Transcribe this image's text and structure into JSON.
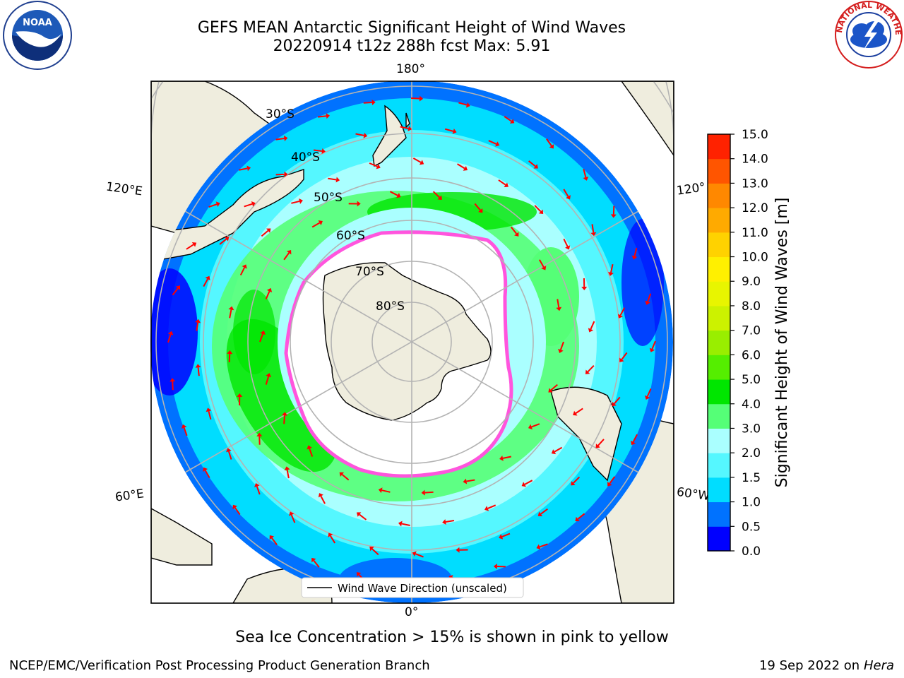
{
  "header": {
    "title_line1": "GEFS MEAN Antarctic Significant Height of Wind Waves",
    "title_line2": "20220914 t12z 288h fcst   Max: 5.91"
  },
  "logos": {
    "noaa": "NOAA",
    "nws": "NATIONAL WEATHER SERVICE"
  },
  "map": {
    "projection": "south-polar-stereographic",
    "longitude_labels": {
      "top": "180°",
      "bottom": "0°",
      "upper_left": "120°E",
      "upper_right": "120°",
      "lower_left": "60°E",
      "lower_right": "60°W"
    },
    "latitude_labels": [
      "30°S",
      "40°S",
      "50°S",
      "60°S",
      "70°S",
      "80°S"
    ],
    "legend": "Wind Wave Direction (unscaled)",
    "colors": {
      "land": "#efedde",
      "ice_free_blank": "#ffffff",
      "graticule": "#b3b3b3",
      "arrows": "#ff0000",
      "sea_ice": "#ff55dd"
    }
  },
  "colorbar": {
    "label": "Significant Height of Wind Waves [m]",
    "ticks": [
      "0.0",
      "0.5",
      "1.0",
      "1.5",
      "2.0",
      "3.0",
      "4.0",
      "5.0",
      "6.0",
      "7.0",
      "8.0",
      "9.0",
      "10.0",
      "11.0",
      "12.0",
      "13.0",
      "14.0",
      "15.0"
    ],
    "colors": [
      "#0000ff",
      "#0072ff",
      "#00ddff",
      "#55f7ff",
      "#aaffff",
      "#55ff77",
      "#00e600",
      "#55ee00",
      "#99ee00",
      "#ccf200",
      "#e8f500",
      "#fff000",
      "#ffd200",
      "#ffaa00",
      "#ff8800",
      "#ff5500",
      "#ff2200"
    ]
  },
  "footer": {
    "note": "Sea Ice Concentration > 15% is shown in pink to yellow",
    "credit": "NCEP/EMC/Verification Post Processing Product Generation Branch",
    "date": "19 Sep 2022 on",
    "host": "Hera"
  }
}
